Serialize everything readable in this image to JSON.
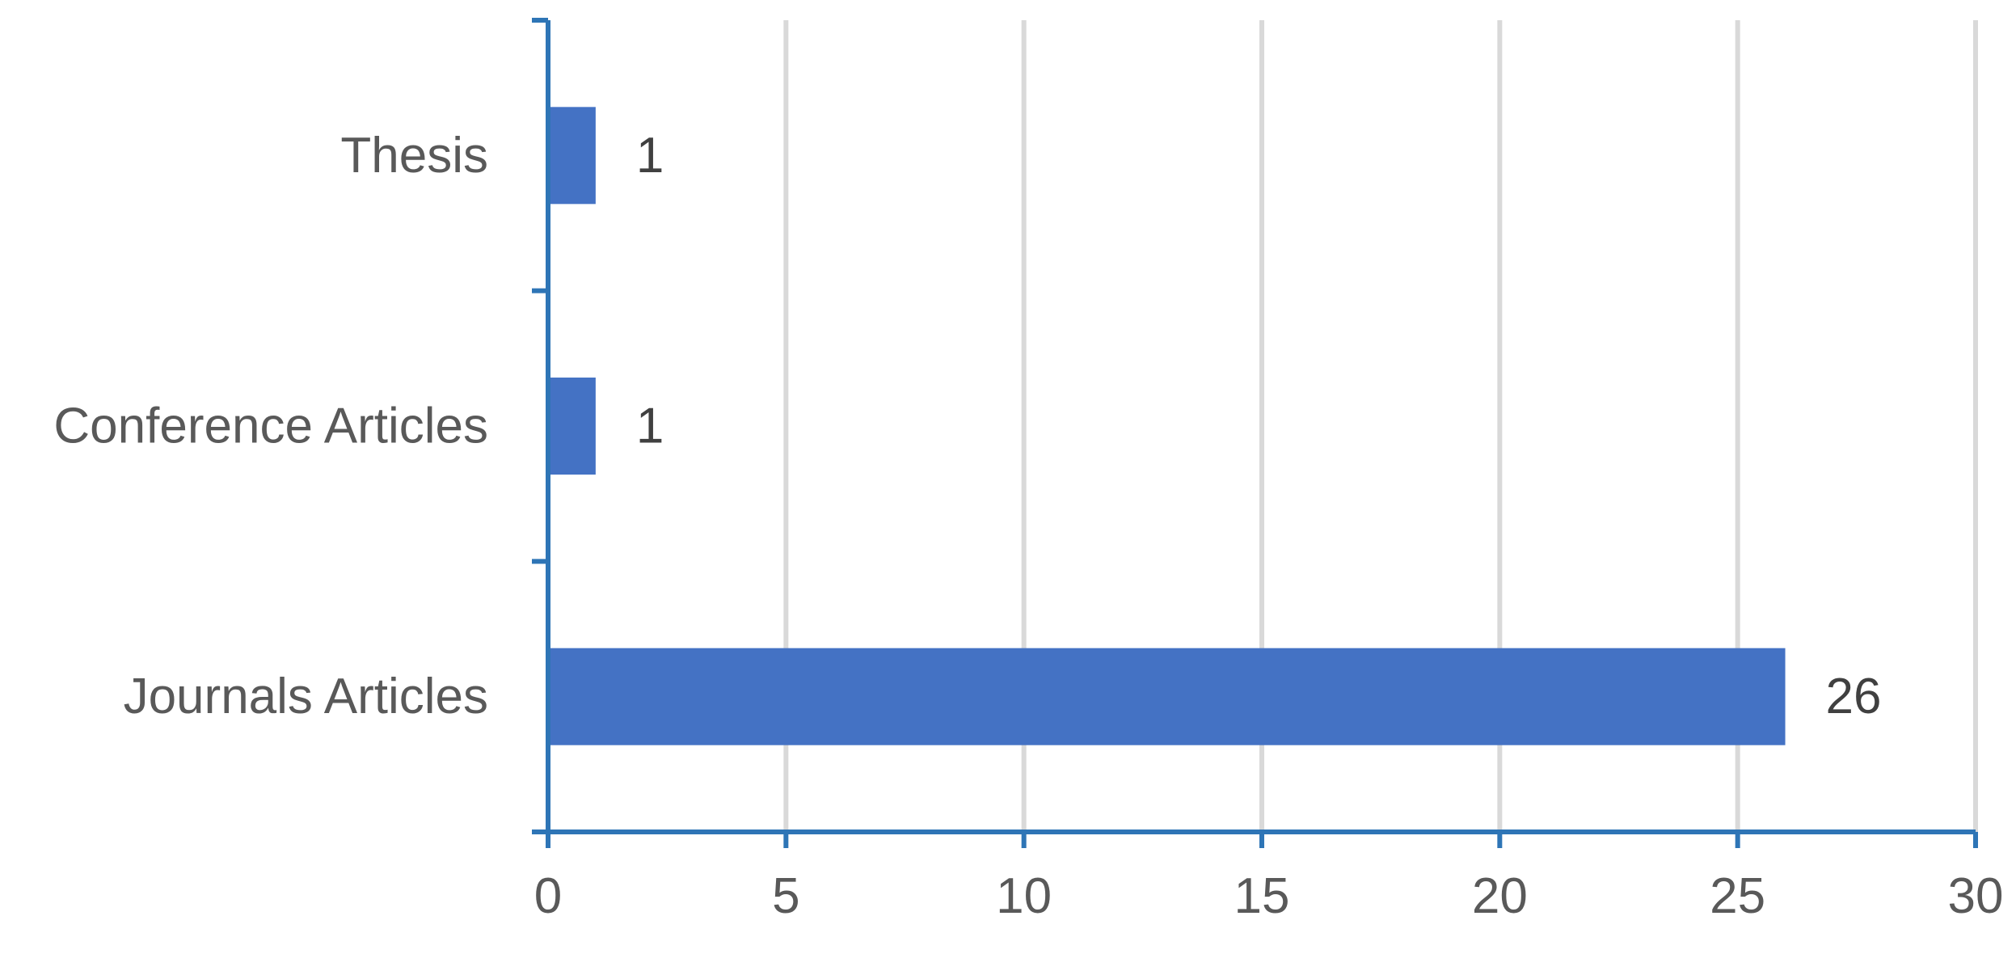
{
  "chart_data": {
    "type": "bar",
    "orientation": "horizontal",
    "categories": [
      "Thesis",
      "Conference Articles",
      "Journals Articles"
    ],
    "values": [
      1,
      1,
      26
    ],
    "data_labels": [
      "1",
      "1",
      "26"
    ],
    "title": "",
    "xlabel": "",
    "ylabel": "",
    "xlim": [
      0,
      30
    ],
    "x_ticks": [
      0,
      5,
      10,
      15,
      20,
      25,
      30
    ],
    "x_tick_labels": [
      "0",
      "5",
      "10",
      "15",
      "20",
      "25",
      "30"
    ],
    "grid": true,
    "legend": "none",
    "colors": {
      "bar": "#4472C4",
      "axis": "#2E75B6",
      "grid": "#D9D9D9",
      "label_text": "#595959",
      "data_label_text": "#404040"
    }
  }
}
